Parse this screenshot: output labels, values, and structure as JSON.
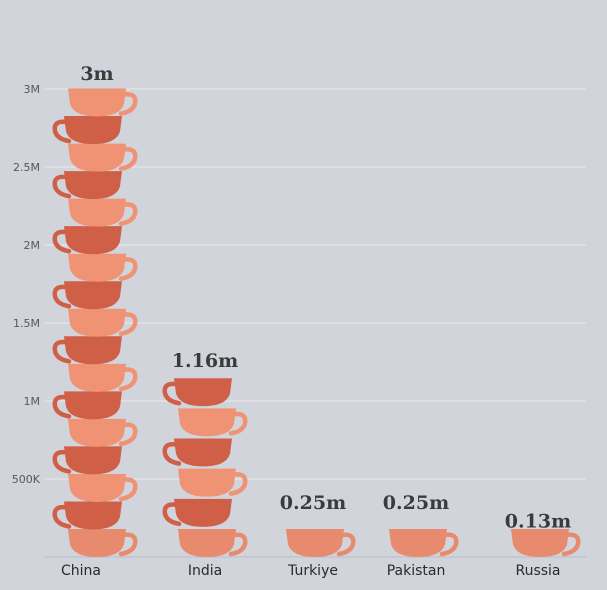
{
  "chart_data": {
    "type": "bar",
    "title": "",
    "xlabel": "",
    "ylabel": "",
    "categories": [
      "China",
      "India",
      "Turkiye",
      "Pakistan",
      "Russia"
    ],
    "values": [
      3000000,
      1160000,
      250000,
      250000,
      130000
    ],
    "data_labels": [
      "3m",
      "1.16m",
      "0.25m",
      "0.25m",
      "0.13m"
    ],
    "ylim": [
      0,
      3000000
    ],
    "yticks": [
      500000,
      1000000,
      1500000,
      2000000,
      2500000,
      3000000
    ],
    "ytick_labels": [
      "500K",
      "1M",
      "1.5M",
      "2M",
      "2.5M",
      "3M"
    ],
    "grid": true,
    "mark_style": "stacked teacups"
  },
  "colors": {
    "background": "#d2d4dc",
    "cup_light": "#ef9374",
    "cup_dark": "#cf5f46",
    "cup_bottom": "#e78a6d",
    "gridline": "#e9eaee"
  }
}
